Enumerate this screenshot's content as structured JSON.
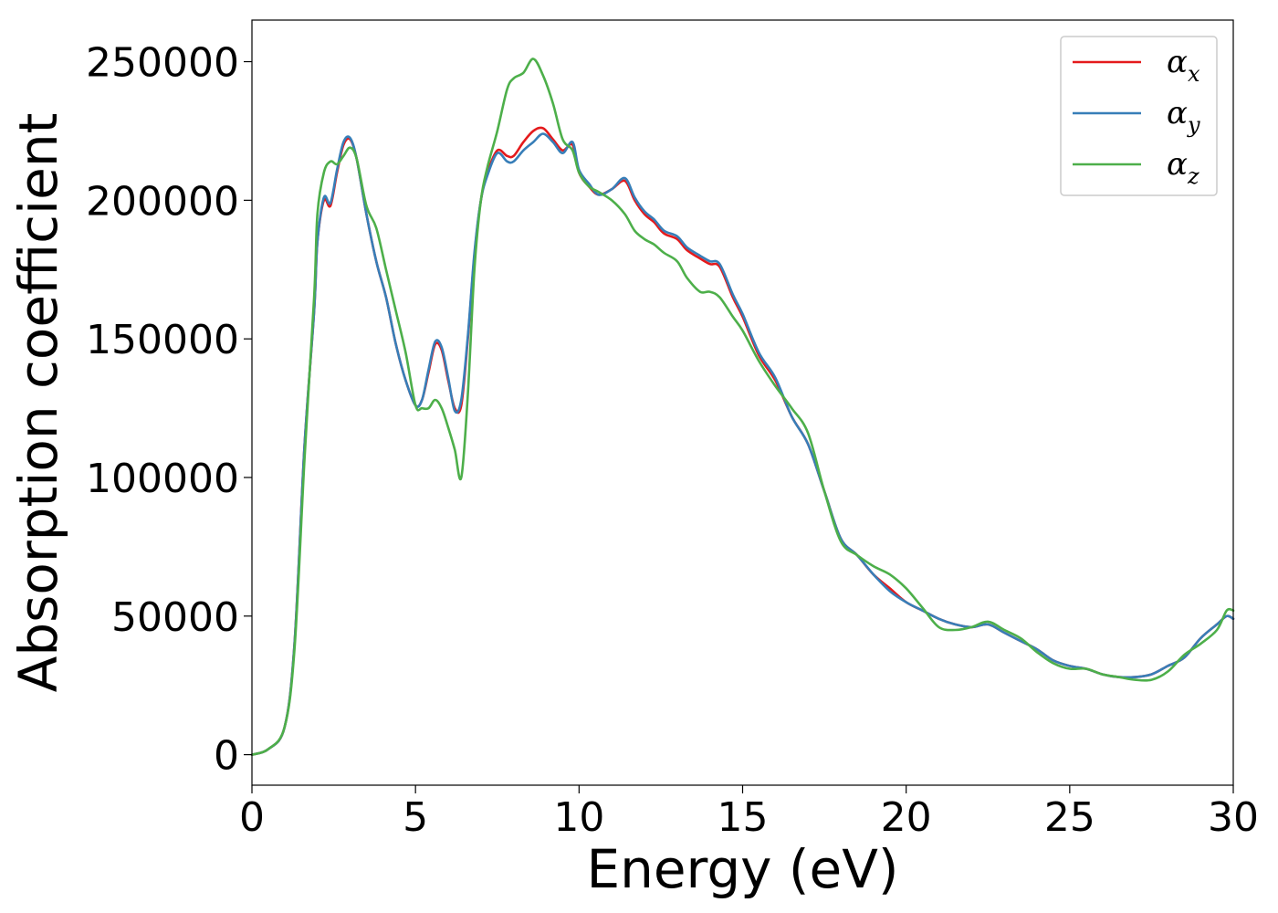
{
  "chart_data": {
    "type": "line",
    "xlabel": "Energy (eV)",
    "ylabel": "Absorption coefficient",
    "xlim": [
      0,
      30
    ],
    "ylim": [
      -11000,
      265000
    ],
    "xticks": [
      0,
      5,
      10,
      15,
      20,
      25,
      30
    ],
    "xtick_labels": [
      "0",
      "5",
      "10",
      "15",
      "20",
      "25",
      "30"
    ],
    "yticks": [
      0,
      50000,
      100000,
      150000,
      200000,
      250000
    ],
    "ytick_labels": [
      "0",
      "50000",
      "100000",
      "150000",
      "200000",
      "250000"
    ],
    "grid": false,
    "legend_position": "top-right",
    "series": [
      {
        "name": "α",
        "subscript": "x",
        "color": "#e41a1c",
        "x": [
          0,
          0.5,
          1.0,
          1.3,
          1.6,
          1.9,
          2.0,
          2.2,
          2.4,
          2.6,
          2.8,
          3.0,
          3.2,
          3.5,
          3.8,
          4.1,
          4.4,
          4.7,
          5.0,
          5.2,
          5.4,
          5.6,
          5.8,
          6.0,
          6.2,
          6.4,
          6.6,
          6.8,
          7.0,
          7.2,
          7.5,
          7.8,
          8.0,
          8.3,
          8.6,
          8.9,
          9.2,
          9.5,
          9.8,
          10.0,
          10.3,
          10.6,
          11.0,
          11.4,
          11.7,
          12.0,
          12.3,
          12.6,
          13.0,
          13.3,
          13.7,
          14.0,
          14.3,
          14.7,
          15.0,
          15.5,
          16.0,
          16.5,
          17.0,
          17.5,
          18.0,
          18.5,
          19.0,
          19.5,
          20.0,
          20.5,
          21.0,
          21.5,
          22.0,
          22.5,
          23.0,
          23.5,
          24.0,
          24.5,
          25.0,
          25.5,
          26.0,
          26.5,
          27.0,
          27.5,
          28.0,
          28.5,
          29.0,
          29.5,
          29.8,
          30.0
        ],
        "values": [
          0,
          2000,
          10000,
          40000,
          110000,
          160000,
          185000,
          200000,
          198000,
          210000,
          220000,
          222000,
          215000,
          195000,
          178000,
          165000,
          148000,
          135000,
          126000,
          128000,
          138000,
          148000,
          146000,
          135000,
          125000,
          126000,
          150000,
          180000,
          200000,
          210000,
          218000,
          216000,
          216000,
          221000,
          225000,
          226000,
          222000,
          218000,
          220000,
          210000,
          205000,
          202000,
          204000,
          207000,
          200000,
          195000,
          192000,
          188000,
          186000,
          182000,
          179000,
          177000,
          176000,
          165000,
          158000,
          144000,
          135000,
          122000,
          112000,
          95000,
          78000,
          72000,
          65000,
          60000,
          55000,
          52000,
          49000,
          47000,
          46000,
          47000,
          44000,
          41000,
          38000,
          34000,
          32000,
          31000,
          29000,
          28000,
          28000,
          29000,
          32000,
          35000,
          42000,
          47000,
          50000,
          49000
        ]
      },
      {
        "name": "α",
        "subscript": "y",
        "color": "#377eb8",
        "x": [
          0,
          0.5,
          1.0,
          1.3,
          1.6,
          1.9,
          2.0,
          2.2,
          2.4,
          2.6,
          2.8,
          3.0,
          3.2,
          3.5,
          3.8,
          4.1,
          4.4,
          4.7,
          5.0,
          5.2,
          5.4,
          5.6,
          5.8,
          6.0,
          6.2,
          6.4,
          6.6,
          6.8,
          7.0,
          7.2,
          7.5,
          7.8,
          8.0,
          8.3,
          8.6,
          8.9,
          9.2,
          9.5,
          9.8,
          10.0,
          10.3,
          10.6,
          11.0,
          11.4,
          11.7,
          12.0,
          12.3,
          12.6,
          13.0,
          13.3,
          13.7,
          14.0,
          14.3,
          14.7,
          15.0,
          15.5,
          16.0,
          16.5,
          17.0,
          17.5,
          18.0,
          18.5,
          19.0,
          19.5,
          20.0,
          20.5,
          21.0,
          21.5,
          22.0,
          22.5,
          23.0,
          23.5,
          24.0,
          24.5,
          25.0,
          25.5,
          26.0,
          26.5,
          27.0,
          27.5,
          28.0,
          28.5,
          29.0,
          29.5,
          29.8,
          30.0
        ],
        "values": [
          0,
          2000,
          10000,
          40000,
          110000,
          160000,
          185000,
          201000,
          199000,
          211000,
          221000,
          222500,
          215000,
          195000,
          178000,
          165000,
          148000,
          135000,
          126000,
          128000,
          139000,
          149000,
          147000,
          136000,
          124000,
          128000,
          151000,
          181000,
          200000,
          209000,
          217000,
          214000,
          214000,
          218000,
          221000,
          224000,
          221000,
          217000,
          221000,
          211000,
          206000,
          202000,
          204000,
          208000,
          201000,
          196000,
          193000,
          189000,
          187000,
          183000,
          180000,
          178000,
          177000,
          166000,
          159000,
          145000,
          136000,
          122000,
          112000,
          95000,
          78000,
          72000,
          65000,
          59000,
          55000,
          52000,
          49000,
          47000,
          46000,
          47000,
          44000,
          41000,
          38000,
          34000,
          32000,
          31000,
          29000,
          28000,
          28000,
          29000,
          32000,
          35000,
          42000,
          47000,
          50000,
          49000
        ]
      },
      {
        "name": "α",
        "subscript": "z",
        "color": "#4daf4a",
        "x": [
          0,
          0.5,
          1.0,
          1.3,
          1.6,
          1.9,
          2.0,
          2.2,
          2.4,
          2.6,
          2.8,
          3.0,
          3.2,
          3.5,
          3.8,
          4.1,
          4.4,
          4.7,
          5.0,
          5.2,
          5.4,
          5.6,
          5.8,
          6.0,
          6.2,
          6.4,
          6.6,
          6.8,
          7.0,
          7.2,
          7.5,
          7.8,
          8.0,
          8.3,
          8.6,
          8.9,
          9.2,
          9.5,
          9.8,
          10.0,
          10.3,
          10.6,
          11.0,
          11.4,
          11.7,
          12.0,
          12.3,
          12.6,
          13.0,
          13.3,
          13.7,
          14.0,
          14.3,
          14.7,
          15.0,
          15.5,
          16.0,
          16.5,
          17.0,
          17.5,
          18.0,
          18.5,
          19.0,
          19.5,
          20.0,
          20.5,
          21.0,
          21.5,
          22.0,
          22.5,
          23.0,
          23.5,
          24.0,
          24.5,
          25.0,
          25.5,
          26.0,
          26.5,
          27.0,
          27.5,
          28.0,
          28.5,
          29.0,
          29.5,
          29.8,
          30.0
        ],
        "values": [
          0,
          2000,
          10000,
          38000,
          105000,
          165000,
          195000,
          210000,
          214000,
          213000,
          216000,
          219000,
          215000,
          198000,
          190000,
          175000,
          160000,
          145000,
          126000,
          125000,
          125000,
          128000,
          125000,
          118000,
          110000,
          100000,
          130000,
          175000,
          200000,
          212000,
          225000,
          240000,
          244000,
          246000,
          251000,
          245000,
          235000,
          222000,
          218000,
          210000,
          205000,
          203000,
          200000,
          195000,
          189000,
          186000,
          184000,
          181000,
          178000,
          172000,
          167000,
          167000,
          165000,
          158000,
          153000,
          142000,
          133000,
          125000,
          116000,
          95000,
          77000,
          72000,
          68000,
          65000,
          60000,
          53000,
          46000,
          45000,
          46000,
          48000,
          45000,
          42000,
          37000,
          33000,
          31000,
          31000,
          29000,
          28000,
          27000,
          27000,
          30000,
          36000,
          40000,
          45000,
          52000,
          52000
        ]
      }
    ]
  }
}
